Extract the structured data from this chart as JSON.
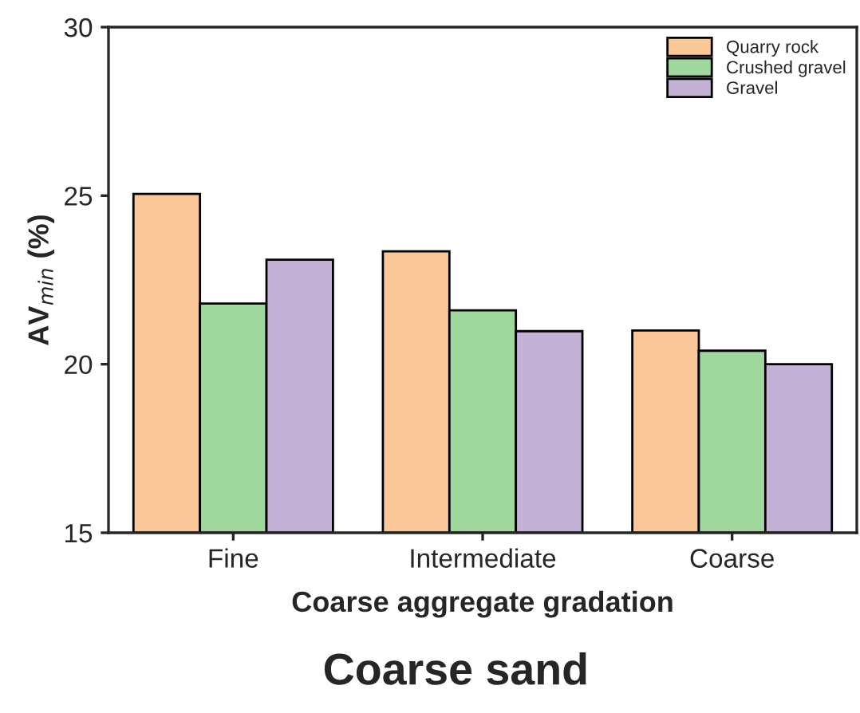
{
  "chart_data": {
    "type": "bar",
    "title": "Coarse sand",
    "xlabel": "Coarse aggregate gradation",
    "ylabel": "AV$_{min}$ (%)",
    "categories": [
      "Fine",
      "Intermediate",
      "Coarse"
    ],
    "series": [
      {
        "name": "Quarry rock",
        "color": "#fac898",
        "values": [
          25.05,
          23.35,
          21.0
        ]
      },
      {
        "name": "Crushed gravel",
        "color": "#9fd79c",
        "values": [
          21.8,
          21.6,
          20.4
        ]
      },
      {
        "name": "Gravel",
        "color": "#c3b2d6",
        "values": [
          23.1,
          20.98,
          20.0
        ]
      }
    ],
    "ylim": [
      15,
      30
    ],
    "yticks": [
      15,
      20,
      25,
      30
    ],
    "grid": false,
    "legend": "top right"
  }
}
